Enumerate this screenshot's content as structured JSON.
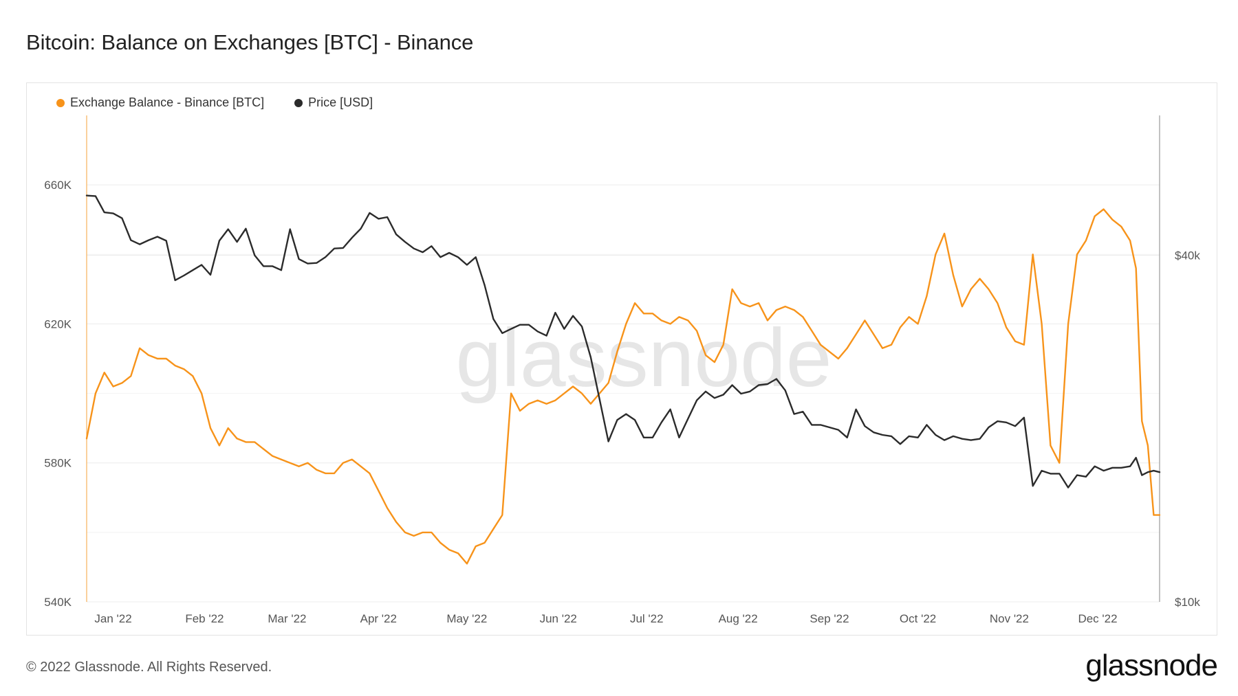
{
  "title": "Bitcoin: Balance on Exchanges [BTC] - Binance",
  "footer": {
    "copyright": "© 2022 Glassnode. All Rights Reserved.",
    "logo": "glassnode"
  },
  "watermark": "glassnode",
  "colors": {
    "balance": "#f7931a",
    "price": "#2b2b2b",
    "grid": "#ececec"
  },
  "chart_data": {
    "type": "line",
    "title": "Bitcoin: Balance on Exchanges [BTC] - Binance",
    "legend_position": "top-left",
    "grid": true,
    "x_ticks": [
      "Jan '22",
      "Feb '22",
      "Mar '22",
      "Apr '22",
      "May '22",
      "Jun '22",
      "Jul '22",
      "Aug '22",
      "Sep '22",
      "Oct '22",
      "Nov '22",
      "Dec '22"
    ],
    "x_range": [
      "2021-12-23",
      "2022-12-22"
    ],
    "y_left": {
      "ticks": [
        "540K",
        "580K",
        "620K",
        "660K"
      ],
      "range": [
        540000,
        680000
      ]
    },
    "y_right": {
      "ticks": [
        "$10k",
        "$40k"
      ],
      "scale": "log",
      "range": [
        10000,
        70000
      ]
    },
    "series": [
      {
        "name": "Exchange Balance - Binance [BTC]",
        "axis": "left",
        "color": "#f7931a",
        "points": [
          [
            "2021-12-23",
            587000
          ],
          [
            "2021-12-26",
            600000
          ],
          [
            "2021-12-29",
            606000
          ],
          [
            "2022-01-01",
            602000
          ],
          [
            "2022-01-04",
            603000
          ],
          [
            "2022-01-07",
            605000
          ],
          [
            "2022-01-10",
            613000
          ],
          [
            "2022-01-13",
            611000
          ],
          [
            "2022-01-16",
            610000
          ],
          [
            "2022-01-19",
            610000
          ],
          [
            "2022-01-22",
            608000
          ],
          [
            "2022-01-25",
            607000
          ],
          [
            "2022-01-28",
            605000
          ],
          [
            "2022-01-31",
            600000
          ],
          [
            "2022-02-03",
            590000
          ],
          [
            "2022-02-06",
            585000
          ],
          [
            "2022-02-09",
            590000
          ],
          [
            "2022-02-12",
            587000
          ],
          [
            "2022-02-15",
            586000
          ],
          [
            "2022-02-18",
            586000
          ],
          [
            "2022-02-21",
            584000
          ],
          [
            "2022-02-24",
            582000
          ],
          [
            "2022-02-27",
            581000
          ],
          [
            "2022-03-02",
            580000
          ],
          [
            "2022-03-05",
            579000
          ],
          [
            "2022-03-08",
            580000
          ],
          [
            "2022-03-11",
            578000
          ],
          [
            "2022-03-14",
            577000
          ],
          [
            "2022-03-17",
            577000
          ],
          [
            "2022-03-20",
            580000
          ],
          [
            "2022-03-23",
            581000
          ],
          [
            "2022-03-26",
            579000
          ],
          [
            "2022-03-29",
            577000
          ],
          [
            "2022-04-01",
            572000
          ],
          [
            "2022-04-04",
            567000
          ],
          [
            "2022-04-07",
            563000
          ],
          [
            "2022-04-10",
            560000
          ],
          [
            "2022-04-13",
            559000
          ],
          [
            "2022-04-16",
            560000
          ],
          [
            "2022-04-19",
            560000
          ],
          [
            "2022-04-22",
            557000
          ],
          [
            "2022-04-25",
            555000
          ],
          [
            "2022-04-28",
            554000
          ],
          [
            "2022-05-01",
            551000
          ],
          [
            "2022-05-04",
            556000
          ],
          [
            "2022-05-07",
            557000
          ],
          [
            "2022-05-10",
            561000
          ],
          [
            "2022-05-13",
            565000
          ],
          [
            "2022-05-16",
            600000
          ],
          [
            "2022-05-19",
            595000
          ],
          [
            "2022-05-22",
            597000
          ],
          [
            "2022-05-25",
            598000
          ],
          [
            "2022-05-28",
            597000
          ],
          [
            "2022-05-31",
            598000
          ],
          [
            "2022-06-03",
            600000
          ],
          [
            "2022-06-06",
            602000
          ],
          [
            "2022-06-09",
            600000
          ],
          [
            "2022-06-12",
            597000
          ],
          [
            "2022-06-15",
            600000
          ],
          [
            "2022-06-18",
            603000
          ],
          [
            "2022-06-21",
            612000
          ],
          [
            "2022-06-24",
            620000
          ],
          [
            "2022-06-27",
            626000
          ],
          [
            "2022-06-30",
            623000
          ],
          [
            "2022-07-03",
            623000
          ],
          [
            "2022-07-06",
            621000
          ],
          [
            "2022-07-09",
            620000
          ],
          [
            "2022-07-12",
            622000
          ],
          [
            "2022-07-15",
            621000
          ],
          [
            "2022-07-18",
            618000
          ],
          [
            "2022-07-21",
            611000
          ],
          [
            "2022-07-24",
            609000
          ],
          [
            "2022-07-27",
            614000
          ],
          [
            "2022-07-30",
            630000
          ],
          [
            "2022-08-02",
            626000
          ],
          [
            "2022-08-05",
            625000
          ],
          [
            "2022-08-08",
            626000
          ],
          [
            "2022-08-11",
            621000
          ],
          [
            "2022-08-14",
            624000
          ],
          [
            "2022-08-17",
            625000
          ],
          [
            "2022-08-20",
            624000
          ],
          [
            "2022-08-23",
            622000
          ],
          [
            "2022-08-26",
            618000
          ],
          [
            "2022-08-29",
            614000
          ],
          [
            "2022-09-01",
            612000
          ],
          [
            "2022-09-04",
            610000
          ],
          [
            "2022-09-07",
            613000
          ],
          [
            "2022-09-10",
            617000
          ],
          [
            "2022-09-13",
            621000
          ],
          [
            "2022-09-16",
            617000
          ],
          [
            "2022-09-19",
            613000
          ],
          [
            "2022-09-22",
            614000
          ],
          [
            "2022-09-25",
            619000
          ],
          [
            "2022-09-28",
            622000
          ],
          [
            "2022-10-01",
            620000
          ],
          [
            "2022-10-04",
            628000
          ],
          [
            "2022-10-07",
            640000
          ],
          [
            "2022-10-10",
            646000
          ],
          [
            "2022-10-13",
            634000
          ],
          [
            "2022-10-16",
            625000
          ],
          [
            "2022-10-19",
            630000
          ],
          [
            "2022-10-22",
            633000
          ],
          [
            "2022-10-25",
            630000
          ],
          [
            "2022-10-28",
            626000
          ],
          [
            "2022-10-31",
            619000
          ],
          [
            "2022-11-03",
            615000
          ],
          [
            "2022-11-06",
            614000
          ],
          [
            "2022-11-09",
            640000
          ],
          [
            "2022-11-12",
            620000
          ],
          [
            "2022-11-15",
            585000
          ],
          [
            "2022-11-18",
            580000
          ],
          [
            "2022-11-21",
            620000
          ],
          [
            "2022-11-24",
            640000
          ],
          [
            "2022-11-27",
            644000
          ],
          [
            "2022-11-30",
            651000
          ],
          [
            "2022-12-03",
            653000
          ],
          [
            "2022-12-06",
            650000
          ],
          [
            "2022-12-09",
            648000
          ],
          [
            "2022-12-12",
            644000
          ],
          [
            "2022-12-14",
            636000
          ],
          [
            "2022-12-16",
            592000
          ],
          [
            "2022-12-18",
            585000
          ],
          [
            "2022-12-20",
            565000
          ],
          [
            "2022-12-22",
            565000
          ]
        ]
      },
      {
        "name": "Price [USD]",
        "axis": "right",
        "color": "#2b2b2b",
        "points": [
          [
            "2021-12-23",
            50800
          ],
          [
            "2021-12-26",
            50700
          ],
          [
            "2021-12-29",
            47500
          ],
          [
            "2022-01-01",
            47300
          ],
          [
            "2022-01-04",
            46400
          ],
          [
            "2022-01-07",
            42500
          ],
          [
            "2022-01-10",
            41800
          ],
          [
            "2022-01-13",
            42500
          ],
          [
            "2022-01-16",
            43100
          ],
          [
            "2022-01-19",
            42400
          ],
          [
            "2022-01-22",
            36200
          ],
          [
            "2022-01-25",
            36900
          ],
          [
            "2022-01-28",
            37700
          ],
          [
            "2022-01-31",
            38500
          ],
          [
            "2022-02-03",
            37000
          ],
          [
            "2022-02-06",
            42400
          ],
          [
            "2022-02-09",
            44400
          ],
          [
            "2022-02-12",
            42200
          ],
          [
            "2022-02-15",
            44500
          ],
          [
            "2022-02-18",
            40000
          ],
          [
            "2022-02-21",
            38300
          ],
          [
            "2022-02-24",
            38300
          ],
          [
            "2022-02-27",
            37700
          ],
          [
            "2022-03-02",
            44400
          ],
          [
            "2022-03-05",
            39400
          ],
          [
            "2022-03-08",
            38700
          ],
          [
            "2022-03-11",
            38800
          ],
          [
            "2022-03-14",
            39700
          ],
          [
            "2022-03-17",
            41100
          ],
          [
            "2022-03-20",
            41200
          ],
          [
            "2022-03-23",
            42900
          ],
          [
            "2022-03-26",
            44500
          ],
          [
            "2022-03-29",
            47400
          ],
          [
            "2022-04-01",
            46300
          ],
          [
            "2022-04-04",
            46600
          ],
          [
            "2022-04-07",
            43500
          ],
          [
            "2022-04-10",
            42200
          ],
          [
            "2022-04-13",
            41100
          ],
          [
            "2022-04-16",
            40500
          ],
          [
            "2022-04-19",
            41500
          ],
          [
            "2022-04-22",
            39700
          ],
          [
            "2022-04-25",
            40400
          ],
          [
            "2022-04-28",
            39700
          ],
          [
            "2022-05-01",
            38500
          ],
          [
            "2022-05-04",
            39700
          ],
          [
            "2022-05-07",
            35500
          ],
          [
            "2022-05-10",
            31000
          ],
          [
            "2022-05-13",
            29300
          ],
          [
            "2022-05-16",
            29800
          ],
          [
            "2022-05-19",
            30300
          ],
          [
            "2022-05-22",
            30300
          ],
          [
            "2022-05-25",
            29500
          ],
          [
            "2022-05-28",
            29000
          ],
          [
            "2022-05-31",
            31800
          ],
          [
            "2022-06-03",
            29800
          ],
          [
            "2022-06-06",
            31400
          ],
          [
            "2022-06-09",
            30100
          ],
          [
            "2022-06-12",
            26600
          ],
          [
            "2022-06-15",
            22500
          ],
          [
            "2022-06-18",
            19000
          ],
          [
            "2022-06-21",
            20700
          ],
          [
            "2022-06-24",
            21200
          ],
          [
            "2022-06-27",
            20700
          ],
          [
            "2022-06-30",
            19300
          ],
          [
            "2022-07-03",
            19300
          ],
          [
            "2022-07-06",
            20500
          ],
          [
            "2022-07-09",
            21600
          ],
          [
            "2022-07-12",
            19300
          ],
          [
            "2022-07-15",
            20800
          ],
          [
            "2022-07-18",
            22400
          ],
          [
            "2022-07-21",
            23200
          ],
          [
            "2022-07-24",
            22600
          ],
          [
            "2022-07-27",
            22900
          ],
          [
            "2022-07-30",
            23800
          ],
          [
            "2022-08-02",
            23000
          ],
          [
            "2022-08-05",
            23200
          ],
          [
            "2022-08-08",
            23800
          ],
          [
            "2022-08-11",
            23900
          ],
          [
            "2022-08-14",
            24400
          ],
          [
            "2022-08-17",
            23300
          ],
          [
            "2022-08-20",
            21200
          ],
          [
            "2022-08-23",
            21400
          ],
          [
            "2022-08-26",
            20300
          ],
          [
            "2022-08-29",
            20300
          ],
          [
            "2022-09-01",
            20100
          ],
          [
            "2022-09-04",
            19900
          ],
          [
            "2022-09-07",
            19300
          ],
          [
            "2022-09-10",
            21600
          ],
          [
            "2022-09-13",
            20200
          ],
          [
            "2022-09-16",
            19700
          ],
          [
            "2022-09-19",
            19500
          ],
          [
            "2022-09-22",
            19400
          ],
          [
            "2022-09-25",
            18800
          ],
          [
            "2022-09-28",
            19400
          ],
          [
            "2022-10-01",
            19300
          ],
          [
            "2022-10-04",
            20300
          ],
          [
            "2022-10-07",
            19500
          ],
          [
            "2022-10-10",
            19100
          ],
          [
            "2022-10-13",
            19400
          ],
          [
            "2022-10-16",
            19200
          ],
          [
            "2022-10-19",
            19100
          ],
          [
            "2022-10-22",
            19200
          ],
          [
            "2022-10-25",
            20100
          ],
          [
            "2022-10-28",
            20600
          ],
          [
            "2022-10-31",
            20500
          ],
          [
            "2022-11-03",
            20200
          ],
          [
            "2022-11-06",
            20900
          ],
          [
            "2022-11-09",
            15900
          ],
          [
            "2022-11-12",
            16900
          ],
          [
            "2022-11-15",
            16700
          ],
          [
            "2022-11-18",
            16700
          ],
          [
            "2022-11-21",
            15800
          ],
          [
            "2022-11-24",
            16600
          ],
          [
            "2022-11-27",
            16500
          ],
          [
            "2022-11-30",
            17200
          ],
          [
            "2022-12-03",
            16900
          ],
          [
            "2022-12-06",
            17100
          ],
          [
            "2022-12-09",
            17100
          ],
          [
            "2022-12-12",
            17200
          ],
          [
            "2022-12-14",
            17800
          ],
          [
            "2022-12-16",
            16600
          ],
          [
            "2022-12-18",
            16800
          ],
          [
            "2022-12-20",
            16900
          ],
          [
            "2022-12-22",
            16800
          ]
        ]
      }
    ]
  }
}
